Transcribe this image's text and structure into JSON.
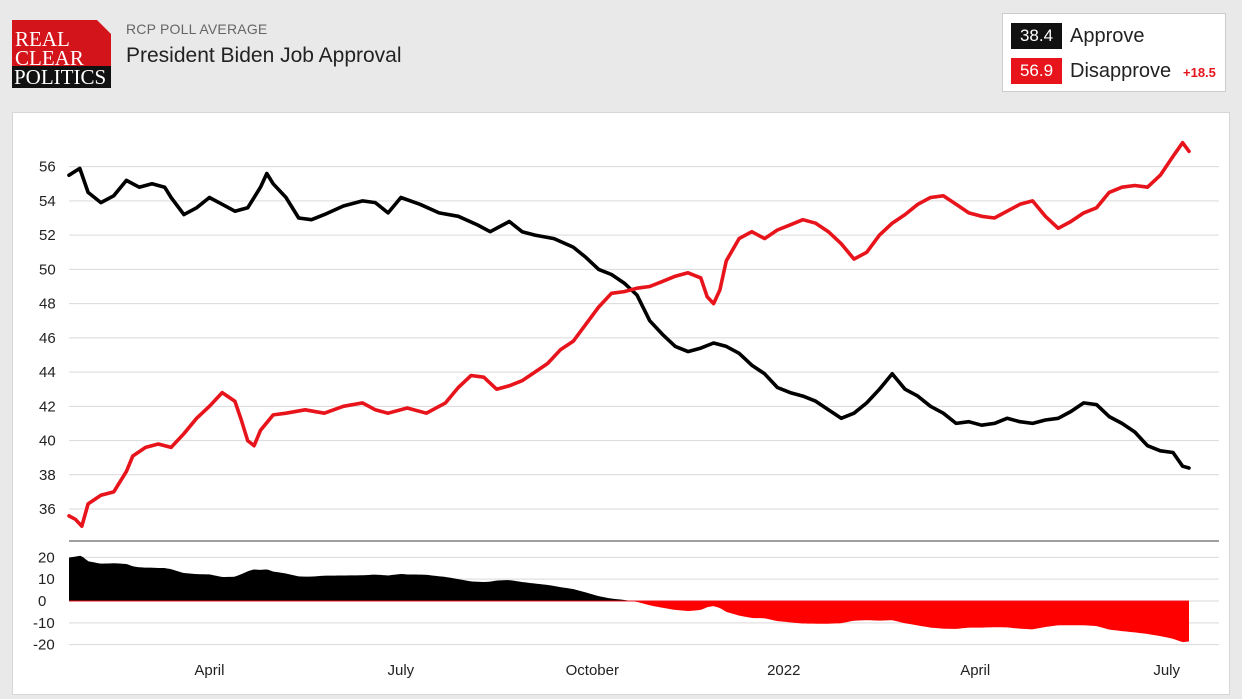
{
  "header": {
    "logo": [
      "REAL",
      "CLEAR",
      "POLITICS"
    ],
    "kicker": "RCP POLL AVERAGE",
    "title": "President Biden Job Approval"
  },
  "legend": {
    "approve": {
      "value": "38.4",
      "label": "Approve",
      "color": "#000000"
    },
    "disapprove": {
      "value": "56.9",
      "label": "Disapprove",
      "color": "#e8141b"
    },
    "spread": "+18.5"
  },
  "chart_data": {
    "type": "line",
    "title": "President Biden Job Approval",
    "x_unit": "months since January 2021",
    "x_tick_labels": [
      {
        "x": 2.2,
        "label": "April"
      },
      {
        "x": 5.2,
        "label": "July"
      },
      {
        "x": 8.2,
        "label": "October"
      },
      {
        "x": 11.2,
        "label": "2022"
      },
      {
        "x": 14.2,
        "label": "April"
      },
      {
        "x": 17.2,
        "label": "July"
      }
    ],
    "xlim": [
      0.0,
      17.55
    ],
    "ylim": [
      34.6,
      57.5
    ],
    "y_ticks": [
      36,
      38,
      40,
      42,
      44,
      46,
      48,
      50,
      52,
      54,
      56
    ],
    "grid": true,
    "legend_position": "top-right",
    "series": [
      {
        "name": "Approve",
        "color": "#000000",
        "points": [
          [
            0.0,
            55.5
          ],
          [
            0.17,
            55.9
          ],
          [
            0.3,
            54.5
          ],
          [
            0.5,
            53.9
          ],
          [
            0.7,
            54.3
          ],
          [
            0.9,
            55.2
          ],
          [
            1.1,
            54.8
          ],
          [
            1.3,
            55.0
          ],
          [
            1.5,
            54.8
          ],
          [
            1.6,
            54.2
          ],
          [
            1.8,
            53.2
          ],
          [
            2.0,
            53.6
          ],
          [
            2.2,
            54.2
          ],
          [
            2.4,
            53.8
          ],
          [
            2.6,
            53.4
          ],
          [
            2.8,
            53.6
          ],
          [
            3.0,
            54.8
          ],
          [
            3.1,
            55.6
          ],
          [
            3.2,
            55.0
          ],
          [
            3.4,
            54.2
          ],
          [
            3.6,
            53.0
          ],
          [
            3.8,
            52.9
          ],
          [
            4.0,
            53.2
          ],
          [
            4.3,
            53.7
          ],
          [
            4.6,
            54.0
          ],
          [
            4.8,
            53.9
          ],
          [
            5.0,
            53.3
          ],
          [
            5.2,
            54.2
          ],
          [
            5.5,
            53.8
          ],
          [
            5.8,
            53.3
          ],
          [
            6.1,
            53.1
          ],
          [
            6.4,
            52.6
          ],
          [
            6.6,
            52.2
          ],
          [
            6.9,
            52.8
          ],
          [
            7.1,
            52.2
          ],
          [
            7.3,
            52.0
          ],
          [
            7.6,
            51.8
          ],
          [
            7.9,
            51.3
          ],
          [
            8.1,
            50.7
          ],
          [
            8.3,
            50.0
          ],
          [
            8.5,
            49.7
          ],
          [
            8.7,
            49.2
          ],
          [
            8.9,
            48.5
          ],
          [
            9.1,
            47.0
          ],
          [
            9.3,
            46.2
          ],
          [
            9.5,
            45.5
          ],
          [
            9.7,
            45.2
          ],
          [
            9.9,
            45.4
          ],
          [
            10.1,
            45.7
          ],
          [
            10.3,
            45.5
          ],
          [
            10.5,
            45.1
          ],
          [
            10.7,
            44.4
          ],
          [
            10.9,
            43.9
          ],
          [
            11.1,
            43.1
          ],
          [
            11.3,
            42.8
          ],
          [
            11.5,
            42.6
          ],
          [
            11.7,
            42.3
          ],
          [
            11.9,
            41.8
          ],
          [
            12.1,
            41.3
          ],
          [
            12.3,
            41.6
          ],
          [
            12.5,
            42.2
          ],
          [
            12.7,
            43.0
          ],
          [
            12.9,
            43.9
          ],
          [
            13.1,
            43.0
          ],
          [
            13.3,
            42.6
          ],
          [
            13.5,
            42.0
          ],
          [
            13.7,
            41.6
          ],
          [
            13.9,
            41.0
          ],
          [
            14.1,
            41.1
          ],
          [
            14.3,
            40.9
          ],
          [
            14.5,
            41.0
          ],
          [
            14.7,
            41.3
          ],
          [
            14.9,
            41.1
          ],
          [
            15.1,
            41.0
          ],
          [
            15.3,
            41.2
          ],
          [
            15.5,
            41.3
          ],
          [
            15.7,
            41.7
          ],
          [
            15.9,
            42.2
          ],
          [
            16.1,
            42.1
          ],
          [
            16.3,
            41.4
          ],
          [
            16.5,
            41.0
          ],
          [
            16.7,
            40.5
          ],
          [
            16.9,
            39.7
          ],
          [
            17.1,
            39.4
          ],
          [
            17.3,
            39.3
          ],
          [
            17.45,
            38.5
          ],
          [
            17.55,
            38.4
          ]
        ]
      },
      {
        "name": "Disapprove",
        "color": "#e8141b",
        "points": [
          [
            0.0,
            35.6
          ],
          [
            0.1,
            35.4
          ],
          [
            0.2,
            35.0
          ],
          [
            0.3,
            36.3
          ],
          [
            0.5,
            36.8
          ],
          [
            0.7,
            37.0
          ],
          [
            0.9,
            38.2
          ],
          [
            1.0,
            39.1
          ],
          [
            1.2,
            39.6
          ],
          [
            1.4,
            39.8
          ],
          [
            1.6,
            39.6
          ],
          [
            1.8,
            40.4
          ],
          [
            2.0,
            41.3
          ],
          [
            2.2,
            42.0
          ],
          [
            2.4,
            42.8
          ],
          [
            2.6,
            42.3
          ],
          [
            2.7,
            41.2
          ],
          [
            2.8,
            40.0
          ],
          [
            2.9,
            39.7
          ],
          [
            3.0,
            40.6
          ],
          [
            3.2,
            41.5
          ],
          [
            3.4,
            41.6
          ],
          [
            3.7,
            41.8
          ],
          [
            4.0,
            41.6
          ],
          [
            4.3,
            42.0
          ],
          [
            4.6,
            42.2
          ],
          [
            4.8,
            41.8
          ],
          [
            5.0,
            41.6
          ],
          [
            5.3,
            41.9
          ],
          [
            5.6,
            41.6
          ],
          [
            5.9,
            42.2
          ],
          [
            6.1,
            43.1
          ],
          [
            6.3,
            43.8
          ],
          [
            6.5,
            43.7
          ],
          [
            6.7,
            43.0
          ],
          [
            6.9,
            43.2
          ],
          [
            7.1,
            43.5
          ],
          [
            7.3,
            44.0
          ],
          [
            7.5,
            44.5
          ],
          [
            7.7,
            45.3
          ],
          [
            7.9,
            45.8
          ],
          [
            8.1,
            46.8
          ],
          [
            8.3,
            47.8
          ],
          [
            8.5,
            48.6
          ],
          [
            8.7,
            48.7
          ],
          [
            8.9,
            48.9
          ],
          [
            9.1,
            49.0
          ],
          [
            9.3,
            49.3
          ],
          [
            9.5,
            49.6
          ],
          [
            9.7,
            49.8
          ],
          [
            9.9,
            49.5
          ],
          [
            10.0,
            48.4
          ],
          [
            10.1,
            48.0
          ],
          [
            10.2,
            48.8
          ],
          [
            10.3,
            50.5
          ],
          [
            10.5,
            51.8
          ],
          [
            10.7,
            52.2
          ],
          [
            10.9,
            51.8
          ],
          [
            11.1,
            52.3
          ],
          [
            11.3,
            52.6
          ],
          [
            11.5,
            52.9
          ],
          [
            11.7,
            52.7
          ],
          [
            11.9,
            52.2
          ],
          [
            12.1,
            51.5
          ],
          [
            12.3,
            50.6
          ],
          [
            12.5,
            51.0
          ],
          [
            12.7,
            52.0
          ],
          [
            12.9,
            52.7
          ],
          [
            13.1,
            53.2
          ],
          [
            13.3,
            53.8
          ],
          [
            13.5,
            54.2
          ],
          [
            13.7,
            54.3
          ],
          [
            13.9,
            53.8
          ],
          [
            14.1,
            53.3
          ],
          [
            14.3,
            53.1
          ],
          [
            14.5,
            53.0
          ],
          [
            14.7,
            53.4
          ],
          [
            14.9,
            53.8
          ],
          [
            15.1,
            54.0
          ],
          [
            15.3,
            53.1
          ],
          [
            15.5,
            52.4
          ],
          [
            15.7,
            52.8
          ],
          [
            15.9,
            53.3
          ],
          [
            16.1,
            53.6
          ],
          [
            16.3,
            54.5
          ],
          [
            16.5,
            54.8
          ],
          [
            16.7,
            54.9
          ],
          [
            16.9,
            54.8
          ],
          [
            17.1,
            55.5
          ],
          [
            17.3,
            56.6
          ],
          [
            17.45,
            57.4
          ],
          [
            17.55,
            56.9
          ]
        ]
      }
    ],
    "spread_panel": {
      "ylim": [
        -22,
        22
      ],
      "y_ticks": [
        20,
        10,
        0,
        -10,
        -20
      ]
    }
  }
}
